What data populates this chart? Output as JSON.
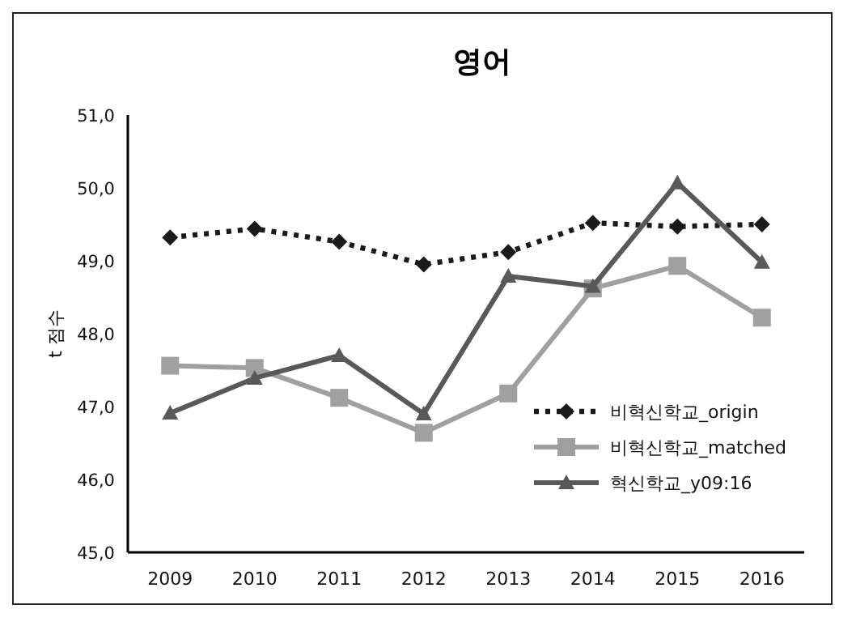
{
  "chart_data": {
    "type": "line",
    "title": "영어",
    "ylabel": "t 점수",
    "categories": [
      "2009",
      "2010",
      "2011",
      "2012",
      "2013",
      "2014",
      "2015",
      "2016"
    ],
    "series": [
      {
        "name": "비혁신학교_origin",
        "color": "#1a1a1a",
        "marker": "diamond",
        "line_style": "dotted",
        "values": [
          49.32,
          49.44,
          49.26,
          48.95,
          49.12,
          49.52,
          49.47,
          49.5
        ]
      },
      {
        "name": "비혁신학교_matched",
        "color": "#a0a0a0",
        "marker": "square",
        "line_style": "solid",
        "values": [
          47.56,
          47.53,
          47.12,
          46.64,
          47.18,
          48.62,
          48.93,
          48.22
        ]
      },
      {
        "name": "혁신학교_y09:16",
        "color": "#595959",
        "marker": "triangle",
        "line_style": "solid",
        "values": [
          46.91,
          47.39,
          47.7,
          46.9,
          48.79,
          48.65,
          50.07,
          48.98
        ]
      }
    ],
    "ylim": [
      45,
      51
    ],
    "yticks": [
      {
        "value": 45,
        "label": "45,0"
      },
      {
        "value": 46,
        "label": "46,0"
      },
      {
        "value": 47,
        "label": "47,0"
      },
      {
        "value": 48,
        "label": "48,0"
      },
      {
        "value": 49,
        "label": "49,0"
      },
      {
        "value": 50,
        "label": "50,0"
      },
      {
        "value": 51,
        "label": "51,0"
      }
    ],
    "grid": false,
    "legend": "bottom right"
  }
}
